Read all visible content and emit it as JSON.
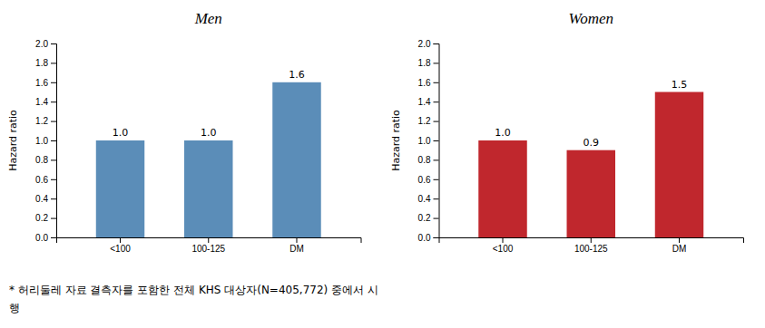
{
  "chart_data": [
    {
      "type": "bar",
      "title": "Men",
      "categories": [
        "<100",
        "100-125",
        "DM"
      ],
      "values": [
        1.0,
        1.0,
        1.6
      ],
      "value_labels": [
        "1.0",
        "1.0",
        "1.6"
      ],
      "data_labels": true,
      "color": "#5B8DB8",
      "ylabel": "Hazard ratio",
      "ylim": [
        0,
        2.0
      ],
      "yticks": [
        {
          "value": 0,
          "label": "0.0"
        },
        0.2,
        0.4,
        0.6,
        0.8,
        {
          "value": 1,
          "label": "1.0"
        },
        1.2,
        1.4,
        1.6,
        1.8,
        {
          "value": 2,
          "label": "2.0"
        }
      ]
    },
    {
      "type": "bar",
      "title": "Women",
      "categories": [
        "<100",
        "100-125",
        "DM"
      ],
      "values": [
        1.0,
        0.9,
        1.5
      ],
      "value_labels": [
        "1.0",
        "0.9",
        "1.5"
      ],
      "data_labels": true,
      "color": "#C0272D",
      "ylabel": "Hazard ratio",
      "ylim": [
        0,
        2.0
      ],
      "yticks": [
        {
          "value": 0,
          "label": "0.0"
        },
        0.2,
        0.4,
        0.6,
        0.8,
        {
          "value": 1,
          "label": "1.0"
        },
        1.2,
        1.4,
        1.6,
        1.8,
        {
          "value": 2,
          "label": "2.0"
        }
      ]
    }
  ],
  "footnote": [
    "* 허리둘레 자료 결측자를 포함한 전체 KHS 대상자(N=405,772) 중에서 시",
    "행"
  ]
}
